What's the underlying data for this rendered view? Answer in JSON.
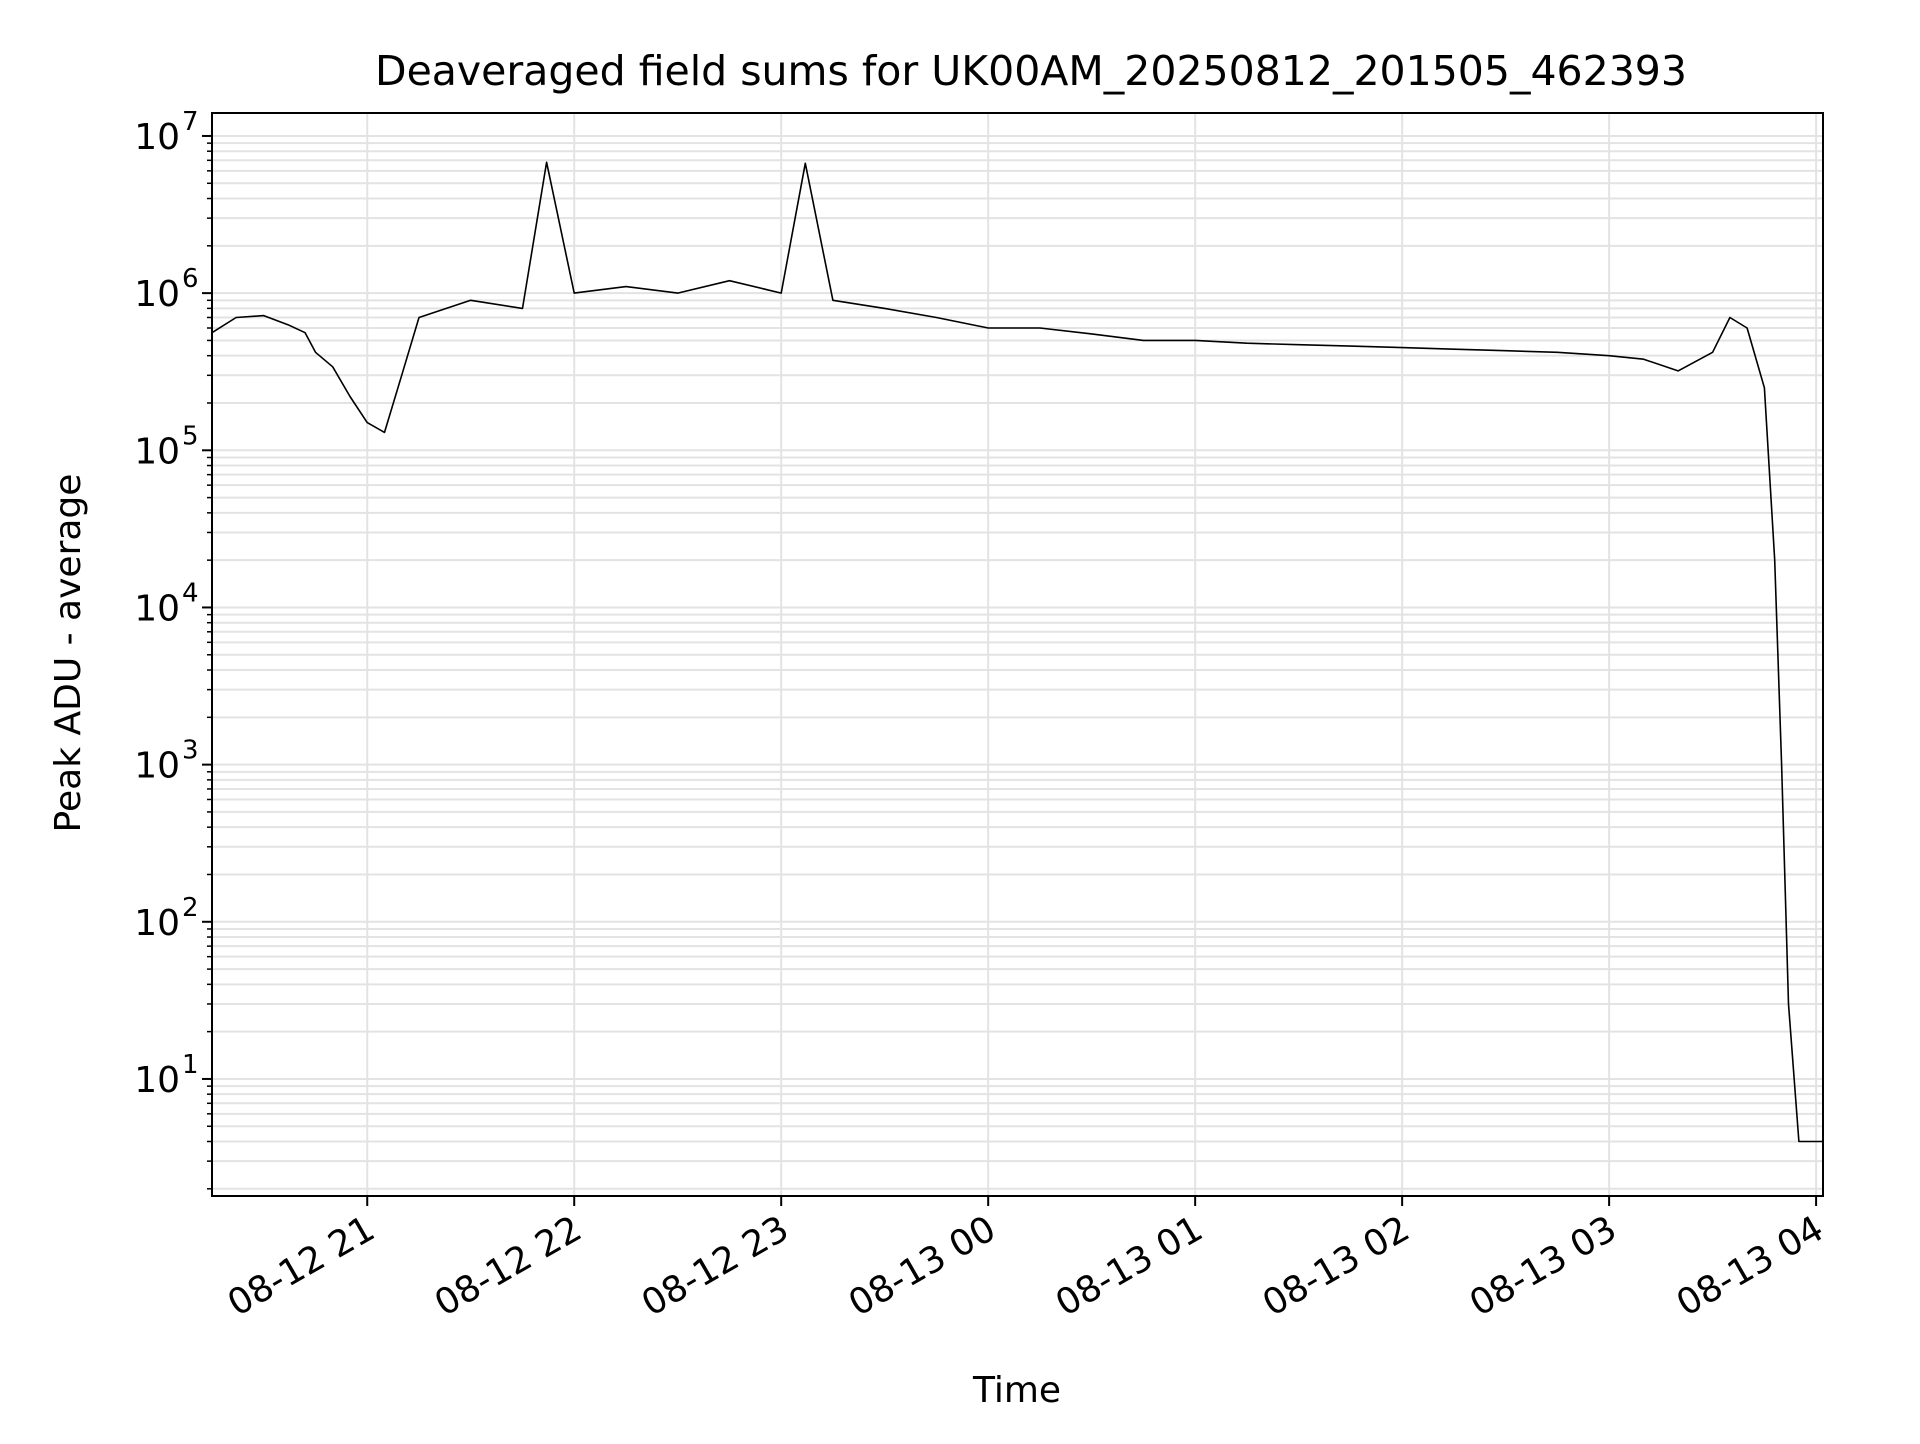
{
  "chart_data": {
    "type": "line",
    "title": "Deaveraged field sums for UK00AM_20250812_201505_462393",
    "xlabel": "Time",
    "ylabel": "Peak ADU - average",
    "yscale": "log",
    "ylim": [
      1.8,
      14000000
    ],
    "xlim": [
      "2025-08-12 20:15",
      "2025-08-13 04:02"
    ],
    "grid": true,
    "line_color": "#000000",
    "x_ticks": [
      "08-12 21",
      "08-12 22",
      "08-12 23",
      "08-13 00",
      "08-13 01",
      "08-13 02",
      "08-13 03",
      "08-13 04"
    ],
    "y_ticks": [
      {
        "base": "10",
        "exp": "1"
      },
      {
        "base": "10",
        "exp": "2"
      },
      {
        "base": "10",
        "exp": "3"
      },
      {
        "base": "10",
        "exp": "4"
      },
      {
        "base": "10",
        "exp": "5"
      },
      {
        "base": "10",
        "exp": "6"
      },
      {
        "base": "10",
        "exp": "7"
      }
    ],
    "series": [
      {
        "x": [
          "2025-08-12 20:15",
          "2025-08-12 20:22",
          "2025-08-12 20:30",
          "2025-08-12 20:37",
          "2025-08-12 20:42",
          "2025-08-12 20:45",
          "2025-08-12 20:50",
          "2025-08-12 20:55",
          "2025-08-12 21:00",
          "2025-08-12 21:05",
          "2025-08-12 21:10",
          "2025-08-12 21:15",
          "2025-08-12 21:30",
          "2025-08-12 21:45",
          "2025-08-12 21:52",
          "2025-08-12 22:00",
          "2025-08-12 22:15",
          "2025-08-12 22:30",
          "2025-08-12 22:45",
          "2025-08-12 23:00",
          "2025-08-12 23:07",
          "2025-08-12 23:15",
          "2025-08-12 23:30",
          "2025-08-12 23:45",
          "2025-08-13 00:00",
          "2025-08-13 00:15",
          "2025-08-13 00:30",
          "2025-08-13 00:45",
          "2025-08-13 01:00",
          "2025-08-13 01:15",
          "2025-08-13 01:30",
          "2025-08-13 01:45",
          "2025-08-13 02:00",
          "2025-08-13 02:15",
          "2025-08-13 02:30",
          "2025-08-13 02:45",
          "2025-08-13 03:00",
          "2025-08-13 03:10",
          "2025-08-13 03:20",
          "2025-08-13 03:30",
          "2025-08-13 03:35",
          "2025-08-13 03:40",
          "2025-08-13 03:45",
          "2025-08-13 03:48",
          "2025-08-13 03:50",
          "2025-08-13 03:52",
          "2025-08-13 03:55",
          "2025-08-13 04:02"
        ],
        "y": [
          560000,
          700000,
          720000,
          630000,
          560000,
          420000,
          340000,
          220000,
          150000,
          130000,
          300000,
          700000,
          900000,
          800000,
          6800000,
          1000000,
          1100000,
          1000000,
          1200000,
          1000000,
          6700000,
          900000,
          800000,
          700000,
          600000,
          600000,
          550000,
          500000,
          500000,
          480000,
          470000,
          460000,
          450000,
          440000,
          430000,
          420000,
          400000,
          380000,
          320000,
          420000,
          700000,
          600000,
          250000,
          20000,
          1000,
          30,
          4,
          4
        ]
      }
    ]
  }
}
